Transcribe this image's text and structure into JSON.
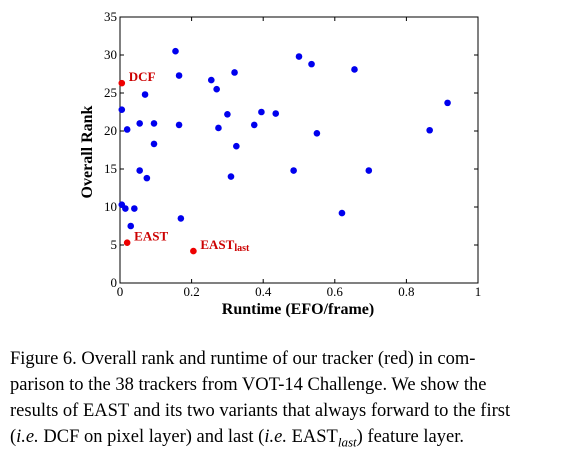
{
  "chart_data": {
    "type": "scatter",
    "xlabel": "Runtime (EFO/frame)",
    "ylabel": "Overall Rank",
    "xlim": [
      0,
      1
    ],
    "ylim": [
      0,
      35
    ],
    "xticks": [
      "0",
      "0.2",
      "0.4",
      "0.6",
      "0.8",
      "1"
    ],
    "yticks": [
      "0",
      "5",
      "10",
      "15",
      "20",
      "25",
      "30",
      "35"
    ],
    "grid": false,
    "series": [
      {
        "color": "#0000ee",
        "points": [
          [
            0.155,
            30.5
          ],
          [
            0.165,
            27.3
          ],
          [
            0.07,
            24.8
          ],
          [
            0.005,
            22.8
          ],
          [
            0.055,
            21.0
          ],
          [
            0.095,
            21.0
          ],
          [
            0.165,
            20.8
          ],
          [
            0.02,
            20.2
          ],
          [
            0.095,
            18.3
          ],
          [
            0.055,
            14.8
          ],
          [
            0.075,
            13.8
          ],
          [
            0.005,
            10.3
          ],
          [
            0.015,
            9.8
          ],
          [
            0.04,
            9.8
          ],
          [
            0.03,
            7.5
          ],
          [
            0.17,
            8.5
          ],
          [
            0.255,
            26.7
          ],
          [
            0.27,
            25.5
          ],
          [
            0.32,
            27.7
          ],
          [
            0.275,
            20.4
          ],
          [
            0.3,
            22.2
          ],
          [
            0.325,
            18.0
          ],
          [
            0.31,
            14.0
          ],
          [
            0.375,
            20.8
          ],
          [
            0.395,
            22.5
          ],
          [
            0.435,
            22.3
          ],
          [
            0.485,
            14.8
          ],
          [
            0.5,
            29.8
          ],
          [
            0.535,
            28.8
          ],
          [
            0.55,
            19.7
          ],
          [
            0.62,
            9.2
          ],
          [
            0.655,
            28.1
          ],
          [
            0.695,
            14.8
          ],
          [
            0.865,
            20.1
          ],
          [
            0.915,
            23.7
          ]
        ]
      },
      {
        "color": "#ee0000",
        "points": [
          {
            "x": 0.005,
            "y": 26.3,
            "label": "DCF"
          },
          {
            "x": 0.02,
            "y": 5.3,
            "label": "EAST"
          },
          {
            "x": 0.205,
            "y": 4.2,
            "label": "EAST",
            "label_sub": "last"
          }
        ]
      }
    ]
  },
  "caption": {
    "line1": "Figure 6. Overall rank and runtime of our tracker (red) in com-",
    "line2": "parison to the 38 trackers from VOT-14 Challenge. We show the",
    "line3": "results of EAST and its two variants that always forward to the first",
    "line4_a": "(",
    "line4_ie1": "i.e.",
    "line4_b": " DCF on pixel layer) and last (",
    "line4_ie2": "i.e.",
    "line4_c": " EAST",
    "line4_sub": "last",
    "line4_d": ") feature layer."
  }
}
